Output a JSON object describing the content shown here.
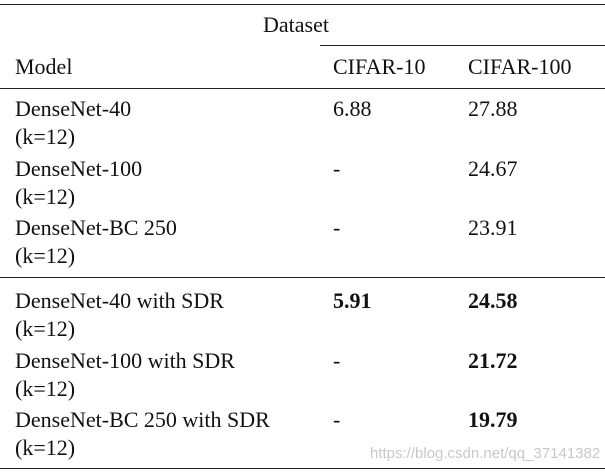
{
  "header": {
    "group_label": "Dataset",
    "model_label": "Model",
    "col1_label": "CIFAR-10",
    "col2_label": "CIFAR-100"
  },
  "rows": [
    {
      "model": "DenseNet-40",
      "param": "(k=12)",
      "cifar10": "6.88",
      "cifar100": "27.88",
      "bold10": false,
      "bold100": false
    },
    {
      "model": "DenseNet-100",
      "param": "(k=12)",
      "cifar10": "-",
      "cifar100": "24.67",
      "bold10": false,
      "bold100": false
    },
    {
      "model": "DenseNet-BC 250",
      "param": "(k=12)",
      "cifar10": "-",
      "cifar100": "23.91",
      "bold10": false,
      "bold100": false
    },
    {
      "model": "DenseNet-40 with SDR",
      "param": "(k=12)",
      "cifar10": "5.91",
      "cifar100": "24.58",
      "bold10": true,
      "bold100": true
    },
    {
      "model": "DenseNet-100 with SDR",
      "param": "(k=12)",
      "cifar10": "-",
      "cifar100": "21.72",
      "bold10": false,
      "bold100": true
    },
    {
      "model": "DenseNet-BC 250 with SDR",
      "param": "(k=12)",
      "cifar10": "-",
      "cifar100": "19.79",
      "bold10": false,
      "bold100": true
    }
  ],
  "watermark": "https://blog.csdn.net/qq_37141382"
}
